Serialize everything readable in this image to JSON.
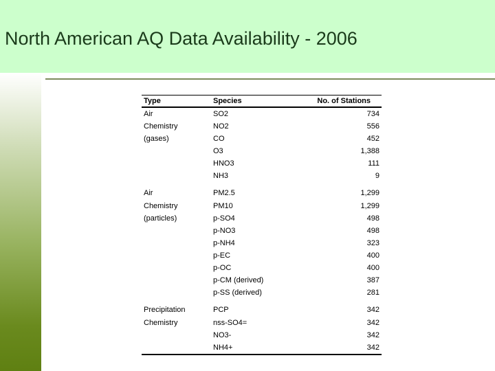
{
  "slide": {
    "title": "North American AQ Data Availability - 2006"
  },
  "table": {
    "headers": {
      "type": "Type",
      "species": "Species",
      "stations": "No. of Stations"
    },
    "rows": [
      {
        "type": "Air",
        "species": "SO2",
        "stations": "734"
      },
      {
        "type": "Chemistry",
        "species": "NO2",
        "stations": "556"
      },
      {
        "type": "(gases)",
        "species": "CO",
        "stations": "452"
      },
      {
        "type": "",
        "species": "O3",
        "stations": "1,388"
      },
      {
        "type": "",
        "species": "HNO3",
        "stations": "111"
      },
      {
        "type": "",
        "species": "NH3",
        "stations": "9"
      },
      {
        "type": "Air",
        "species": "PM2.5",
        "stations": "1,299"
      },
      {
        "type": "Chemistry",
        "species": "PM10",
        "stations": "1,299"
      },
      {
        "type": "(particles)",
        "species": "p-SO4",
        "stations": "498"
      },
      {
        "type": "",
        "species": "p-NO3",
        "stations": "498"
      },
      {
        "type": "",
        "species": "p-NH4",
        "stations": "323"
      },
      {
        "type": "",
        "species": "p-EC",
        "stations": "400"
      },
      {
        "type": "",
        "species": "p-OC",
        "stations": "400"
      },
      {
        "type": "",
        "species": "p-CM (derived)",
        "stations": "387"
      },
      {
        "type": "",
        "species": "p-SS (derived)",
        "stations": "281"
      },
      {
        "type": "Precipitation",
        "species": "PCP",
        "stations": "342"
      },
      {
        "type": "Chemistry",
        "species": "nss-SO4=",
        "stations": "342"
      },
      {
        "type": "",
        "species": "NO3-",
        "stations": "342"
      },
      {
        "type": "",
        "species": "NH4+",
        "stations": "342"
      }
    ]
  }
}
